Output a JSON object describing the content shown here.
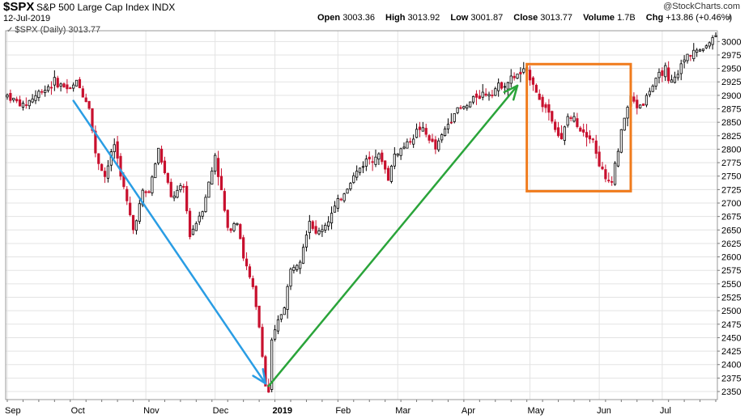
{
  "header": {
    "symbol": "$SPX",
    "name": "S&P 500 Large Cap Index",
    "exchange": "INDX",
    "date": "12-Jul-2019",
    "series_label": "$SPX (Daily) 3013.77",
    "watermark": "@StockCharts.com",
    "open_label": "Open",
    "open_value": "3003.36",
    "high_label": "High",
    "high_value": "3013.92",
    "low_label": "Low",
    "low_value": "3001.87",
    "close_label": "Close",
    "close_value": "3013.77",
    "volume_label": "Volume",
    "volume_value": "1.7B",
    "chg_label": "Chg",
    "chg_value": "+13.86 (+0.46%)",
    "scroll_icon": "chevron-up-icon"
  },
  "colors": {
    "up": "#ffffff",
    "down": "#c8102e",
    "grid": "#e3e3e3",
    "blue_arrow": "#2a9de4",
    "green_arrow": "#2aa43a",
    "box": "#f07b1c"
  },
  "chart_data": {
    "type": "candlestick",
    "title": "$SPX S&P 500 Large Cap Index INDX",
    "ylim": [
      2335,
      3020
    ],
    "y_ticks": [
      2350,
      2375,
      2400,
      2425,
      2450,
      2475,
      2500,
      2525,
      2550,
      2575,
      2600,
      2625,
      2650,
      2675,
      2700,
      2725,
      2750,
      2775,
      2800,
      2825,
      2850,
      2875,
      2900,
      2925,
      2950,
      2975,
      3000
    ],
    "x_ticks": [
      {
        "label": "Sep",
        "index": 0,
        "bold": false
      },
      {
        "label": "Oct",
        "index": 21,
        "bold": false
      },
      {
        "label": "Nov",
        "index": 44,
        "bold": false
      },
      {
        "label": "Dec",
        "index": 66,
        "bold": false
      },
      {
        "label": "2019",
        "index": 85,
        "bold": true
      },
      {
        "label": "Feb",
        "index": 105,
        "bold": false
      },
      {
        "label": "Mar",
        "index": 124,
        "bold": false
      },
      {
        "label": "Apr",
        "index": 145,
        "bold": false
      },
      {
        "label": "May",
        "index": 166,
        "bold": false
      },
      {
        "label": "Jun",
        "index": 188,
        "bold": false
      },
      {
        "label": "Jul",
        "index": 208,
        "bold": false
      }
    ],
    "anchors": [
      [
        0,
        2900
      ],
      [
        5,
        2880
      ],
      [
        10,
        2905
      ],
      [
        15,
        2925
      ],
      [
        20,
        2910
      ],
      [
        22,
        2925
      ],
      [
        26,
        2880
      ],
      [
        28,
        2790
      ],
      [
        31,
        2750
      ],
      [
        34,
        2810
      ],
      [
        38,
        2700
      ],
      [
        40,
        2650
      ],
      [
        43,
        2720
      ],
      [
        45,
        2720
      ],
      [
        48,
        2800
      ],
      [
        52,
        2710
      ],
      [
        56,
        2730
      ],
      [
        58,
        2640
      ],
      [
        62,
        2690
      ],
      [
        65,
        2760
      ],
      [
        66,
        2790
      ],
      [
        70,
        2650
      ],
      [
        73,
        2670
      ],
      [
        75,
        2600
      ],
      [
        78,
        2540
      ],
      [
        80,
        2470
      ],
      [
        81,
        2420
      ],
      [
        82,
        2360
      ],
      [
        83,
        2350
      ],
      [
        84,
        2440
      ],
      [
        86,
        2480
      ],
      [
        88,
        2510
      ],
      [
        90,
        2575
      ],
      [
        93,
        2600
      ],
      [
        96,
        2670
      ],
      [
        98,
        2640
      ],
      [
        101,
        2660
      ],
      [
        103,
        2680
      ],
      [
        105,
        2700
      ],
      [
        110,
        2750
      ],
      [
        114,
        2780
      ],
      [
        117,
        2790
      ],
      [
        119,
        2780
      ],
      [
        121,
        2745
      ],
      [
        123,
        2790
      ],
      [
        127,
        2810
      ],
      [
        131,
        2840
      ],
      [
        134,
        2820
      ],
      [
        136,
        2800
      ],
      [
        138,
        2825
      ],
      [
        142,
        2870
      ],
      [
        146,
        2880
      ],
      [
        149,
        2900
      ],
      [
        153,
        2905
      ],
      [
        157,
        2920
      ],
      [
        159,
        2925
      ],
      [
        161,
        2935
      ],
      [
        165,
        2945
      ],
      [
        167,
        2925
      ],
      [
        169,
        2890
      ],
      [
        172,
        2870
      ],
      [
        174,
        2840
      ],
      [
        176,
        2815
      ],
      [
        178,
        2860
      ],
      [
        180,
        2855
      ],
      [
        182,
        2840
      ],
      [
        184,
        2830
      ],
      [
        186,
        2820
      ],
      [
        187,
        2790
      ],
      [
        189,
        2760
      ],
      [
        190,
        2740
      ],
      [
        192,
        2745
      ],
      [
        194,
        2800
      ],
      [
        196,
        2860
      ],
      [
        198,
        2895
      ],
      [
        200,
        2880
      ],
      [
        202,
        2885
      ],
      [
        204,
        2910
      ],
      [
        206,
        2925
      ],
      [
        208,
        2945
      ],
      [
        209,
        2950
      ],
      [
        210,
        2920
      ],
      [
        212,
        2930
      ],
      [
        214,
        2955
      ],
      [
        216,
        2975
      ],
      [
        218,
        2985
      ],
      [
        220,
        2980
      ],
      [
        222,
        2995
      ],
      [
        224,
        3005
      ],
      [
        225,
        3014
      ]
    ],
    "bar_count": 226,
    "annotations": [
      {
        "type": "arrow",
        "color": "blue",
        "from": {
          "index": 21,
          "value": 2890
        },
        "to": {
          "index": 82,
          "value": 2365
        }
      },
      {
        "type": "arrow",
        "color": "green",
        "from": {
          "index": 83,
          "value": 2360
        },
        "to": {
          "index": 162,
          "value": 2918
        }
      },
      {
        "type": "rectangle",
        "color": "orange",
        "from": {
          "index": 165,
          "value": 2958
        },
        "to": {
          "index": 198,
          "value": 2722
        }
      }
    ]
  }
}
